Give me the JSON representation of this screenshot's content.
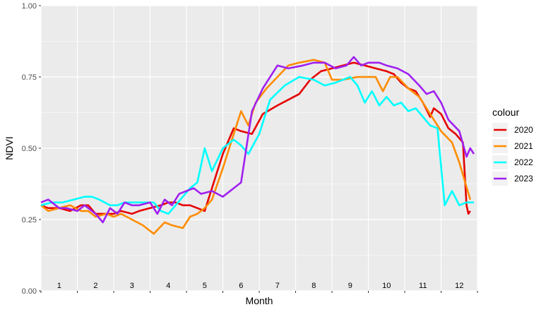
{
  "chart_data": {
    "type": "line",
    "xlabel": "Month",
    "ylabel": "NDVI",
    "ylim": [
      0,
      1
    ],
    "yticks": [
      0.0,
      0.25,
      0.5,
      0.75,
      1.0
    ],
    "ytick_labels": [
      "0.00",
      "0.25",
      "0.50",
      "0.75",
      "1.00"
    ],
    "xlim": [
      0.5,
      12.5
    ],
    "month_labels": [
      "1",
      "2",
      "3",
      "4",
      "5",
      "6",
      "7",
      "8",
      "9",
      "10",
      "11",
      "12"
    ],
    "grid": true,
    "legend_title": "colour",
    "legend_position": "right",
    "series": [
      {
        "name": "2020",
        "color": "#E60000",
        "x": [
          0.5,
          0.7,
          1.0,
          1.3,
          1.6,
          1.8,
          2.0,
          2.3,
          2.5,
          2.7,
          3.0,
          3.2,
          3.5,
          3.8,
          4.0,
          4.2,
          4.4,
          4.6,
          4.8,
          5.0,
          5.3,
          5.5,
          5.8,
          6.0,
          6.3,
          6.6,
          7.0,
          7.3,
          7.6,
          7.9,
          8.2,
          8.5,
          8.8,
          9.1,
          9.4,
          9.7,
          10.0,
          10.2,
          10.4,
          10.6,
          10.8,
          11.0,
          11.2,
          11.3,
          11.5,
          11.7,
          11.9,
          12.1,
          12.2,
          12.25,
          12.3
        ],
        "y": [
          0.3,
          0.29,
          0.29,
          0.28,
          0.3,
          0.3,
          0.27,
          0.27,
          0.27,
          0.28,
          0.27,
          0.28,
          0.29,
          0.3,
          0.31,
          0.31,
          0.3,
          0.3,
          0.29,
          0.28,
          0.4,
          0.48,
          0.57,
          0.56,
          0.55,
          0.62,
          0.65,
          0.67,
          0.69,
          0.74,
          0.77,
          0.78,
          0.79,
          0.8,
          0.79,
          0.78,
          0.77,
          0.76,
          0.73,
          0.71,
          0.7,
          0.66,
          0.61,
          0.64,
          0.62,
          0.57,
          0.55,
          0.52,
          0.3,
          0.27,
          0.28
        ]
      },
      {
        "name": "2021",
        "color": "#FF8C00",
        "x": [
          0.5,
          0.7,
          1.0,
          1.3,
          1.6,
          1.8,
          2.0,
          2.3,
          2.5,
          2.7,
          3.0,
          3.3,
          3.6,
          3.9,
          4.1,
          4.4,
          4.6,
          4.8,
          5.0,
          5.2,
          5.5,
          5.8,
          6.0,
          6.2,
          6.4,
          6.7,
          7.0,
          7.3,
          7.6,
          8.0,
          8.3,
          8.5,
          8.8,
          9.2,
          9.5,
          9.7,
          9.9,
          10.1,
          10.3,
          10.6,
          10.9,
          11.2,
          11.5,
          11.8,
          12.0,
          12.3
        ],
        "y": [
          0.3,
          0.28,
          0.29,
          0.3,
          0.28,
          0.28,
          0.26,
          0.27,
          0.26,
          0.27,
          0.25,
          0.23,
          0.2,
          0.24,
          0.23,
          0.22,
          0.26,
          0.27,
          0.29,
          0.32,
          0.43,
          0.55,
          0.63,
          0.58,
          0.66,
          0.71,
          0.75,
          0.79,
          0.8,
          0.81,
          0.8,
          0.74,
          0.74,
          0.75,
          0.75,
          0.75,
          0.7,
          0.75,
          0.75,
          0.71,
          0.68,
          0.62,
          0.56,
          0.52,
          0.45,
          0.32
        ]
      },
      {
        "name": "2022",
        "color": "#00FFFF",
        "x": [
          0.5,
          0.8,
          1.1,
          1.4,
          1.7,
          1.9,
          2.1,
          2.4,
          2.6,
          2.8,
          3.0,
          3.3,
          3.6,
          3.8,
          4.0,
          4.2,
          4.4,
          4.6,
          4.8,
          5.0,
          5.2,
          5.5,
          5.8,
          6.0,
          6.2,
          6.5,
          6.8,
          7.2,
          7.6,
          8.0,
          8.3,
          8.6,
          9.0,
          9.2,
          9.4,
          9.6,
          9.8,
          10.0,
          10.2,
          10.4,
          10.6,
          10.8,
          11.0,
          11.2,
          11.4,
          11.6,
          11.8,
          12.0,
          12.2,
          12.4
        ],
        "y": [
          0.3,
          0.31,
          0.31,
          0.32,
          0.33,
          0.33,
          0.32,
          0.3,
          0.3,
          0.31,
          0.31,
          0.31,
          0.31,
          0.28,
          0.27,
          0.3,
          0.33,
          0.36,
          0.38,
          0.5,
          0.42,
          0.5,
          0.53,
          0.51,
          0.48,
          0.55,
          0.67,
          0.72,
          0.75,
          0.74,
          0.72,
          0.73,
          0.75,
          0.72,
          0.66,
          0.7,
          0.65,
          0.68,
          0.65,
          0.66,
          0.63,
          0.64,
          0.61,
          0.58,
          0.57,
          0.3,
          0.35,
          0.3,
          0.31,
          0.31
        ]
      },
      {
        "name": "2023",
        "color": "#A020F0",
        "x": [
          0.5,
          0.7,
          1.0,
          1.2,
          1.5,
          1.7,
          2.0,
          2.2,
          2.4,
          2.6,
          2.8,
          3.0,
          3.2,
          3.5,
          3.7,
          3.9,
          4.1,
          4.3,
          4.5,
          4.7,
          4.9,
          5.2,
          5.5,
          5.8,
          6.0,
          6.3,
          6.6,
          7.0,
          7.3,
          7.7,
          8.0,
          8.3,
          8.6,
          8.9,
          9.1,
          9.3,
          9.5,
          9.8,
          10.0,
          10.3,
          10.6,
          10.9,
          11.1,
          11.3,
          11.5,
          11.7,
          12.0,
          12.2,
          12.3,
          12.4
        ],
        "y": [
          0.31,
          0.32,
          0.29,
          0.29,
          0.28,
          0.3,
          0.27,
          0.24,
          0.29,
          0.27,
          0.31,
          0.3,
          0.3,
          0.31,
          0.27,
          0.32,
          0.3,
          0.34,
          0.35,
          0.36,
          0.34,
          0.35,
          0.33,
          0.36,
          0.38,
          0.63,
          0.71,
          0.79,
          0.78,
          0.79,
          0.8,
          0.8,
          0.78,
          0.79,
          0.82,
          0.79,
          0.8,
          0.8,
          0.79,
          0.78,
          0.76,
          0.72,
          0.69,
          0.7,
          0.66,
          0.6,
          0.56,
          0.47,
          0.5,
          0.48
        ]
      }
    ]
  }
}
